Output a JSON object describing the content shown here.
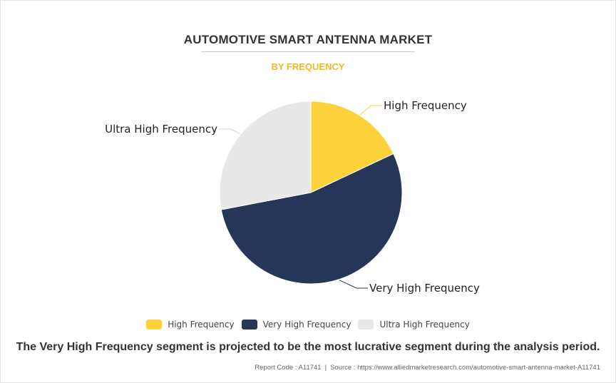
{
  "title": "AUTOMOTIVE SMART ANTENNA MARKET",
  "subtitle": "BY FREQUENCY",
  "chart_data": {
    "type": "pie",
    "title": "AUTOMOTIVE SMART ANTENNA MARKET",
    "subtitle": "BY FREQUENCY",
    "labels": [
      "High Frequency",
      "Very High Frequency",
      "Ultra High Frequency"
    ],
    "values": [
      18,
      54,
      28
    ],
    "colors": [
      "#fdd13a",
      "#253659",
      "#e8e8e8"
    ],
    "legend_position": "bottom"
  },
  "legend": [
    {
      "label": "High Frequency",
      "color": "#fdd13a"
    },
    {
      "label": "Very High Frequency",
      "color": "#253659"
    },
    {
      "label": "Ultra High Frequency",
      "color": "#e8e8e8"
    }
  ],
  "caption": "The Very High Frequency segment is projected to be the most lucrative segment during the analysis period.",
  "footer": {
    "report_code": "Report Code : A11741",
    "separator": "|",
    "source": "Source : https://www.alliedmarketresearch.com/automotive-smart-antenna-market-A11741"
  }
}
